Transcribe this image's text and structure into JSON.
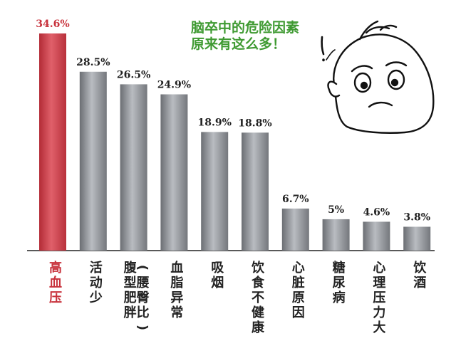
{
  "speech": {
    "line1": "脑卒中的危险因素",
    "line2": "原来有这么多！"
  },
  "colors": {
    "highlight_bar": "#cf3c48",
    "highlight_text": "#c8323c",
    "bar": "#8a8d92",
    "baseline": "#222222",
    "speech_text": "#3f9a32"
  },
  "chart_data": {
    "type": "bar",
    "categories": [
      "高血压",
      "活动少",
      "(腹型肥胖)",
      "血脂异常",
      "吸烟",
      "饮食不健康",
      "心脏原因",
      "糖尿病",
      "心理压力大",
      "饮酒"
    ],
    "category_columns": [
      [
        "高血压"
      ],
      [
        "活动少"
      ],
      [
        "腹型肥胖",
        "(腰臀比)"
      ],
      [
        "血脂异常"
      ],
      [
        "吸烟"
      ],
      [
        "饮食不健康"
      ],
      [
        "心脏原因"
      ],
      [
        "糖尿病"
      ],
      [
        "心理压力大"
      ],
      [
        "饮酒"
      ]
    ],
    "values": [
      34.6,
      28.5,
      26.5,
      24.9,
      18.9,
      18.8,
      6.7,
      5,
      4.6,
      3.8
    ],
    "value_labels": [
      "34.6%",
      "28.5%",
      "26.5%",
      "24.9%",
      "18.9%",
      "18.8%",
      "6.7%",
      "5%",
      "4.6%",
      "3.8%"
    ],
    "highlight_index": 0,
    "title": "",
    "xlabel": "",
    "ylabel": "",
    "ylim": [
      0,
      34.6
    ],
    "grid": false
  }
}
